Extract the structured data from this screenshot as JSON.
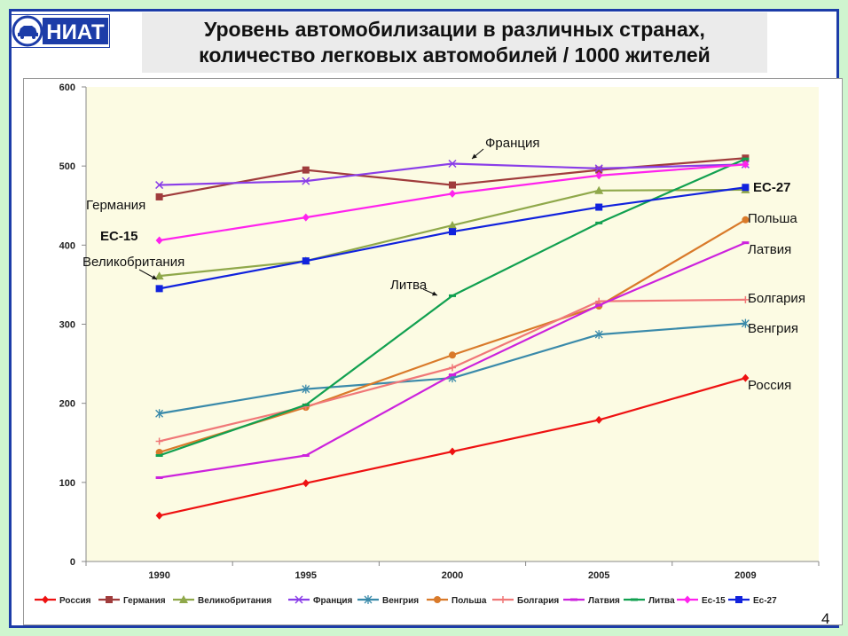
{
  "slide": {
    "title_line1": "Уровень автомобилизации в различных странах,",
    "title_line2": "количество легковых автомобилей / 1000 жителей",
    "logo_text": "НИАТ",
    "page_number": "4"
  },
  "chart_data": {
    "type": "line",
    "title": "",
    "xlabel": "",
    "ylabel": "",
    "ylim": [
      0,
      600
    ],
    "yticks": [
      0,
      100,
      200,
      300,
      400,
      500,
      600
    ],
    "categories": [
      "1990",
      "1995",
      "2000",
      "2005",
      "2009"
    ],
    "grid": false,
    "legend": "bottom",
    "series": [
      {
        "name": "Россия",
        "color": "#ee1111",
        "marker": "diamond",
        "values": [
          58,
          99,
          139,
          179,
          232
        ]
      },
      {
        "name": "Германия",
        "color": "#a03c3c",
        "marker": "square",
        "values": [
          461,
          495,
          476,
          495,
          510
        ]
      },
      {
        "name": "Великобритания",
        "color": "#8fa84a",
        "marker": "triangle",
        "values": [
          361,
          380,
          425,
          469,
          470
        ]
      },
      {
        "name": "Франция",
        "color": "#8a3ee8",
        "marker": "x",
        "values": [
          476,
          481,
          503,
          497,
          502
        ]
      },
      {
        "name": "Венгрия",
        "color": "#3a8aaa",
        "marker": "star",
        "values": [
          187,
          218,
          232,
          287,
          301
        ]
      },
      {
        "name": "Польша",
        "color": "#d97a2a",
        "marker": "circle",
        "values": [
          138,
          195,
          261,
          323,
          432
        ]
      },
      {
        "name": "Болгария",
        "color": "#f07878",
        "marker": "plus",
        "values": [
          152,
          196,
          245,
          329,
          331
        ]
      },
      {
        "name": "Латвия",
        "color": "#cc22dd",
        "marker": "dash",
        "values": [
          106,
          134,
          236,
          324,
          403
        ]
      },
      {
        "name": "Литва",
        "color": "#11a050",
        "marker": "dash",
        "values": [
          134,
          198,
          336,
          428,
          509
        ]
      },
      {
        "name": "Ес-15",
        "color": "#ff22ee",
        "marker": "diamond",
        "values": [
          406,
          435,
          465,
          488,
          502
        ]
      },
      {
        "name": "Ес-27",
        "color": "#1122dd",
        "marker": "square",
        "values": [
          345,
          380,
          417,
          448,
          473
        ]
      }
    ],
    "annotations": [
      {
        "text": "Франция"
      },
      {
        "text": "Германия"
      },
      {
        "text": "ЕС-15"
      },
      {
        "text": "Великобритания"
      },
      {
        "text": "Литва"
      },
      {
        "text": "ЕС-27"
      },
      {
        "text": "Польша"
      },
      {
        "text": "Латвия"
      },
      {
        "text": "Болгария"
      },
      {
        "text": "Венгрия"
      },
      {
        "text": "Россия"
      }
    ]
  }
}
